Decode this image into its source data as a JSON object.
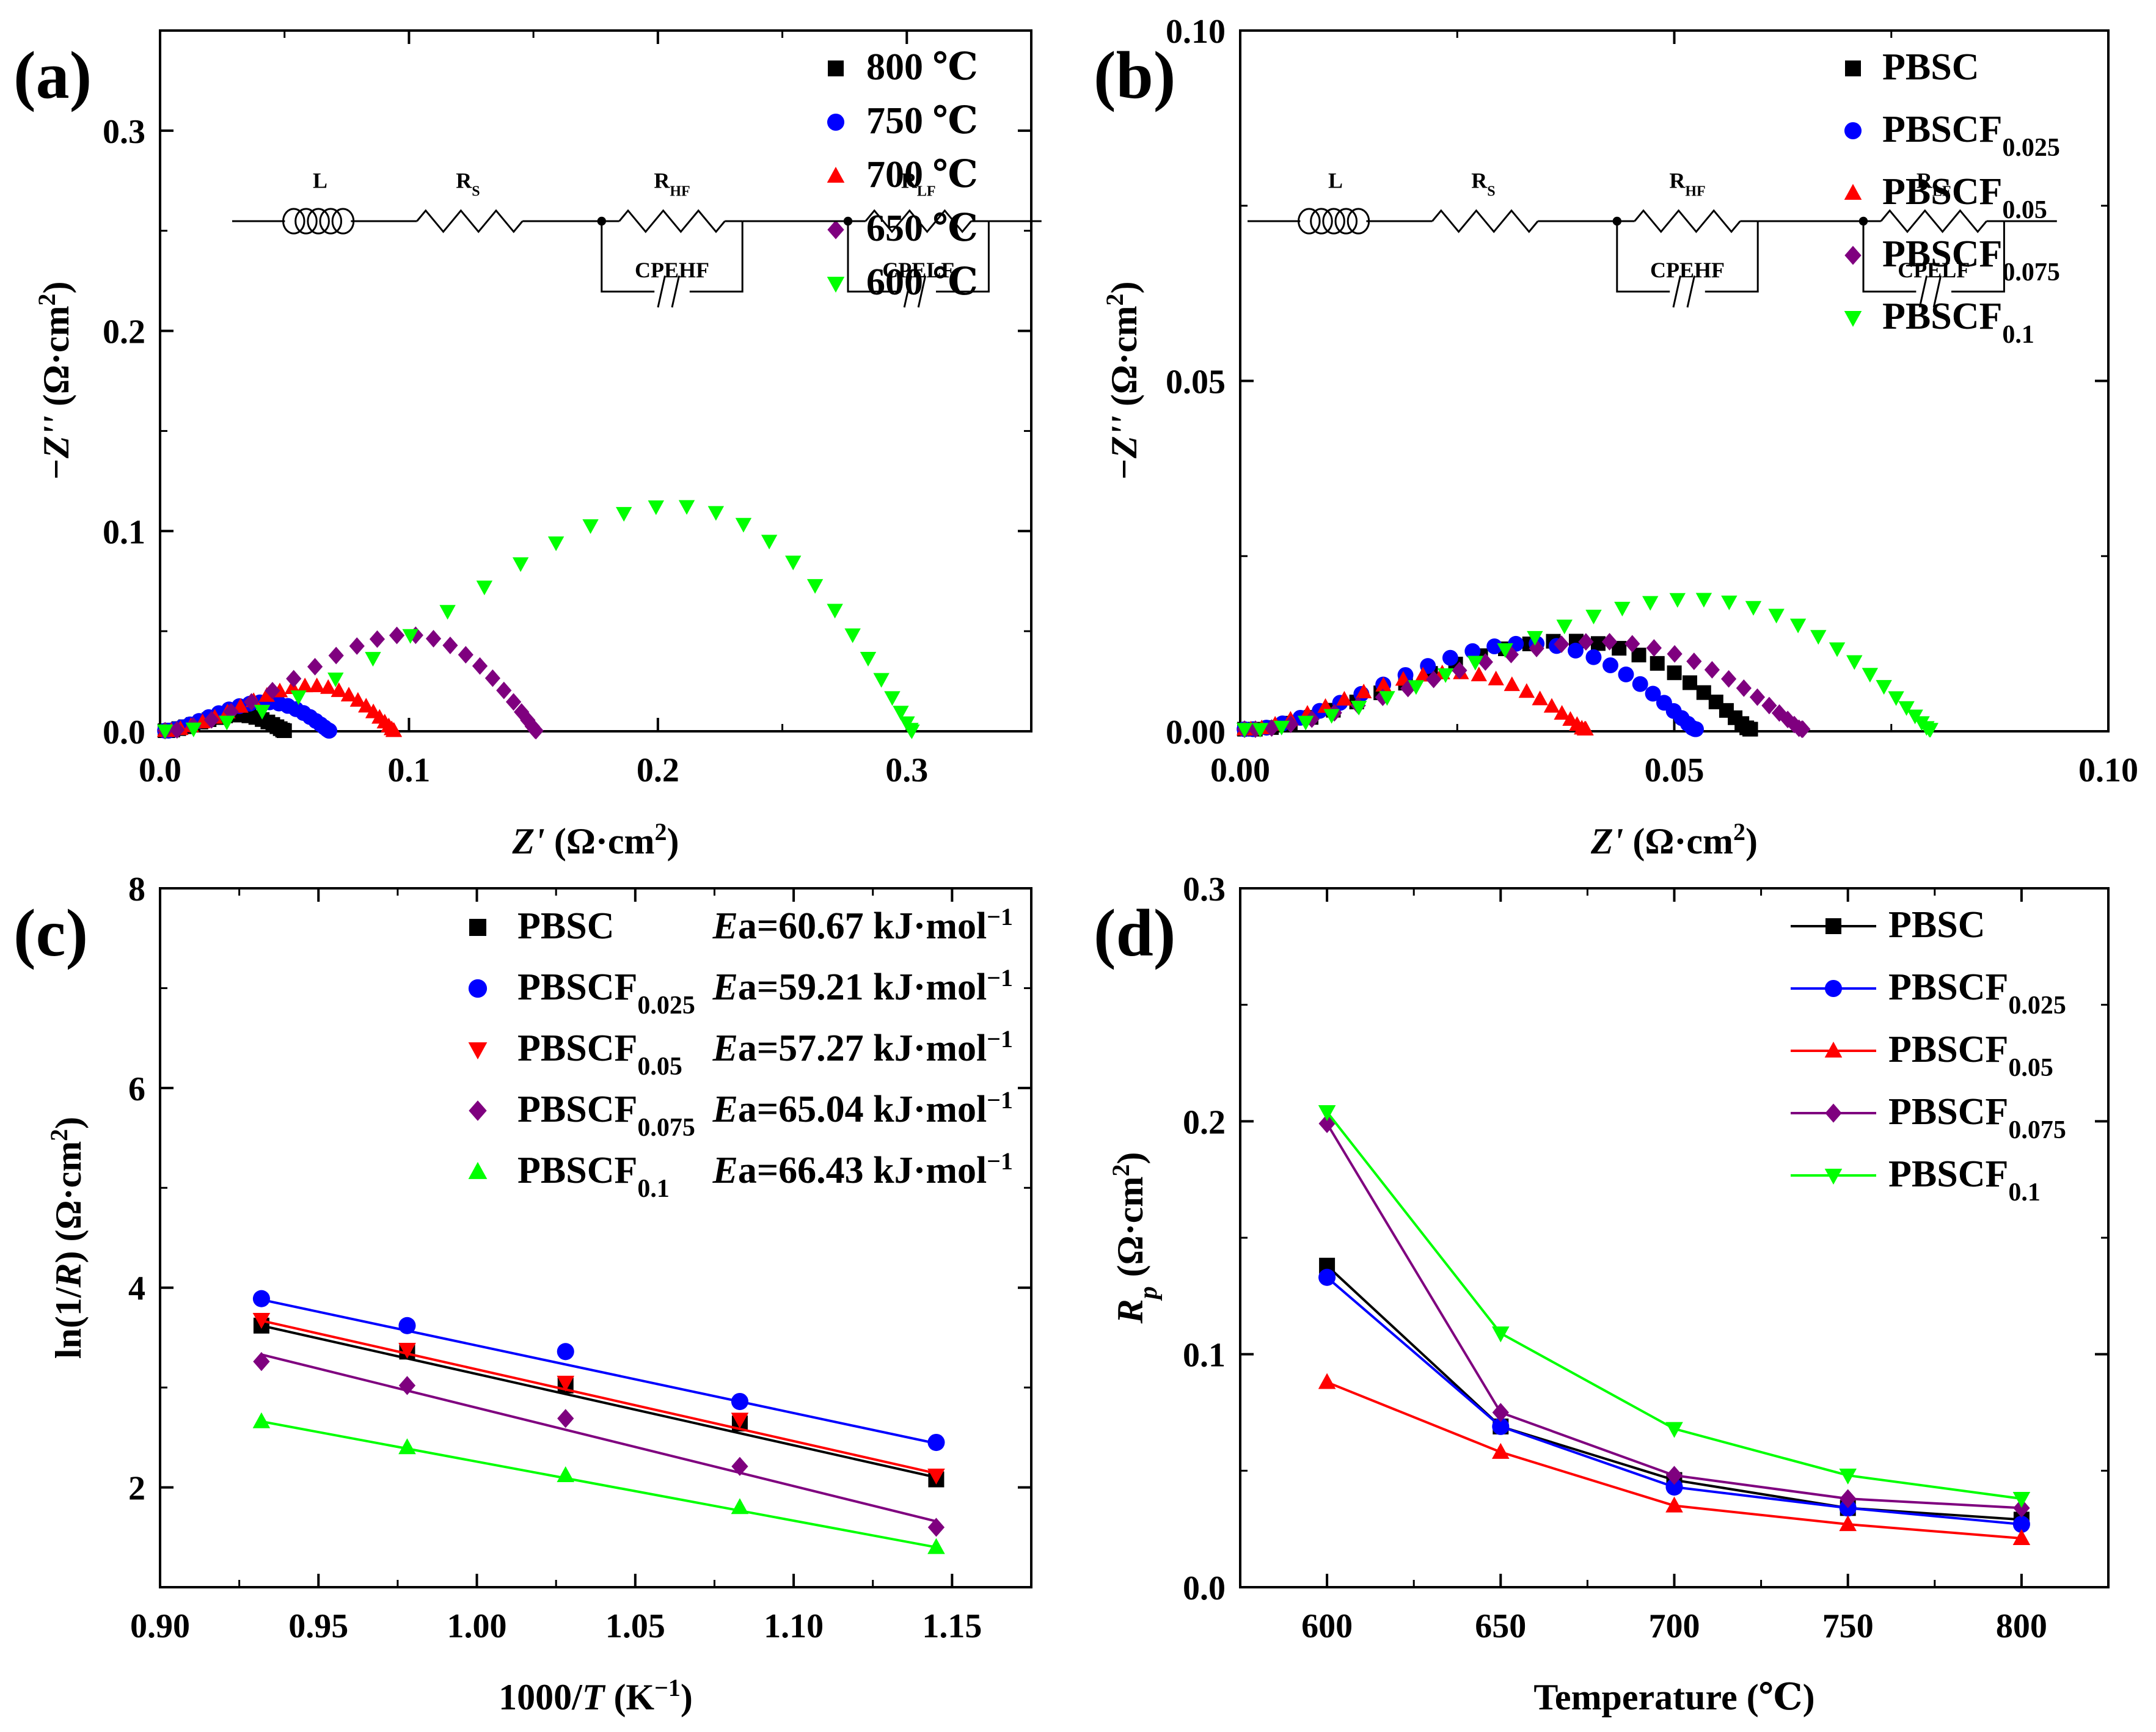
{
  "figure": {
    "colors": {
      "black": "#000000",
      "blue": "#0000ff",
      "red": "#ff0000",
      "purple": "#7f007f",
      "green": "#00ff00"
    },
    "circuit": {
      "L": "L",
      "RS": "R",
      "RS_sub": "S",
      "RHF": "R",
      "RHF_sub": "HF",
      "RLF": "R",
      "RLF_sub": "LF",
      "CPEHF": "CPEHF",
      "CPELF": "CPELF"
    }
  },
  "chart_data": [
    {
      "id": "a",
      "type": "scatter",
      "panel_label": "(a)",
      "xlabel_italic": "Z'",
      "xlabel_rest": " (Ω·cm",
      "xlabel_sup": "2",
      "xlabel_end": ")",
      "ylabel_italic": "−Z''",
      "ylabel_rest": " (Ω·cm",
      "ylabel_sup": "2",
      "ylabel_end": ")",
      "xlim": [
        0,
        0.35
      ],
      "ylim": [
        0,
        0.35
      ],
      "xticks": [
        0,
        0.1,
        0.2,
        0.3
      ],
      "yticks": [
        0,
        0.1,
        0.2,
        0.3
      ],
      "xtick_labels": [
        "0.0",
        "0.1",
        "0.2",
        "0.3"
      ],
      "ytick_labels": [
        "0.0",
        "0.1",
        "0.2",
        "0.3"
      ],
      "legend_position": "top-right",
      "series": [
        {
          "name": "800 ℃",
          "marker": "square",
          "color": "#000000",
          "arc": {
            "r0": 0.002,
            "r1": 0.05,
            "peak": 0.009,
            "n": 22,
            "skew": 0.72
          }
        },
        {
          "name": "750 ℃",
          "marker": "circle",
          "color": "#0000ff",
          "arc": {
            "r0": 0.002,
            "r1": 0.068,
            "peak": 0.016,
            "n": 24,
            "skew": 0.72
          }
        },
        {
          "name": "700 ℃",
          "marker": "triangle-up",
          "color": "#ff0000",
          "arc": {
            "r0": 0.002,
            "r1": 0.094,
            "peak": 0.025,
            "n": 26,
            "skew": 0.65
          }
        },
        {
          "name": "650 ℃",
          "marker": "diamond",
          "color": "#7f007f",
          "arc": {
            "r0": 0.002,
            "r1": 0.151,
            "peak": 0.053,
            "n": 26,
            "skew": 0.62
          }
        },
        {
          "name": "600 ℃",
          "marker": "triangle-down",
          "color": "#00ff00",
          "arc": {
            "r0": 0.002,
            "r1": 0.302,
            "peak": 0.124,
            "n": 30,
            "skew": 0.56
          }
        }
      ]
    },
    {
      "id": "b",
      "type": "scatter",
      "panel_label": "(b)",
      "xlabel_italic": "Z'",
      "xlabel_rest": " (Ω·cm",
      "xlabel_sup": "2",
      "xlabel_end": ")",
      "ylabel_italic": "−Z''",
      "ylabel_rest": " (Ω·cm",
      "ylabel_sup": "2",
      "ylabel_end": ")",
      "xlim": [
        0,
        0.1
      ],
      "ylim": [
        0,
        0.1
      ],
      "xticks": [
        0,
        0.05,
        0.1
      ],
      "yticks": [
        0,
        0.05,
        0.1
      ],
      "xtick_labels": [
        "0.00",
        "0.05",
        "0.10"
      ],
      "ytick_labels": [
        "0.00",
        "0.05",
        "0.10"
      ],
      "legend_position": "top-right",
      "series": [
        {
          "name": "PBSC",
          "sub": "",
          "marker": "square",
          "color": "#000000",
          "arc": {
            "r0": 0.0005,
            "r1": 0.0588,
            "peak": 0.0142,
            "n": 30,
            "skew": 0.66
          }
        },
        {
          "name": "PBSCF",
          "sub": "0.025",
          "marker": "circle",
          "color": "#0000ff",
          "arc": {
            "r0": 0.0005,
            "r1": 0.0525,
            "peak": 0.0138,
            "n": 30,
            "skew": 0.68
          }
        },
        {
          "name": "PBSCF",
          "sub": "0.05",
          "marker": "triangle-up",
          "color": "#ff0000",
          "arc": {
            "r0": 0.0005,
            "r1": 0.0398,
            "peak": 0.0092,
            "n": 26,
            "skew": 0.72
          }
        },
        {
          "name": "PBSCF",
          "sub": "0.075",
          "marker": "diamond",
          "color": "#7f007f",
          "arc": {
            "r0": 0.0005,
            "r1": 0.0648,
            "peak": 0.0141,
            "n": 32,
            "skew": 0.66
          }
        },
        {
          "name": "PBSCF",
          "sub": "0.1",
          "marker": "triangle-down",
          "color": "#00ff00",
          "arc": {
            "r0": 0.0005,
            "r1": 0.0795,
            "peak": 0.0208,
            "n": 34,
            "skew": 0.62
          }
        }
      ]
    },
    {
      "id": "c",
      "type": "scatter",
      "panel_label": "(c)",
      "xlabel_pre": "1000/",
      "xlabel_italic": "T",
      "xlabel_rest": " (K",
      "xlabel_sup": "−1",
      "xlabel_end": ")",
      "ylabel_pre": "ln(1/",
      "ylabel_italic": "R",
      "ylabel_rest": ") (Ω·cm",
      "ylabel_sup": "2",
      "ylabel_end": ")",
      "xlim": [
        0.9,
        1.175
      ],
      "ylim": [
        1.0,
        8.0
      ],
      "xticks": [
        0.9,
        0.95,
        1.0,
        1.05,
        1.1,
        1.15
      ],
      "yticks": [
        2,
        4,
        6,
        8
      ],
      "xtick_labels": [
        "0.90",
        "0.95",
        "1.00",
        "1.05",
        "1.10",
        "1.15"
      ],
      "ytick_labels": [
        "2",
        "4",
        "6",
        "8"
      ],
      "x": [
        0.932,
        0.978,
        1.028,
        1.083,
        1.145
      ],
      "legend_position": "top-right",
      "series": [
        {
          "name": "PBSC",
          "sub": "",
          "ea": "60.67",
          "marker": "square",
          "color": "#000000",
          "values": [
            3.62,
            3.36,
            3.02,
            2.64,
            2.08
          ],
          "fit": [
            3.62,
            2.1
          ]
        },
        {
          "name": "PBSCF",
          "sub": "0.025",
          "ea": "59.21",
          "marker": "circle",
          "color": "#0000ff",
          "values": [
            3.89,
            3.62,
            3.36,
            2.86,
            2.45
          ],
          "fit": [
            3.88,
            2.44
          ]
        },
        {
          "name": "PBSCF",
          "sub": "0.05",
          "ea": "57.27",
          "marker": "triangle-down",
          "color": "#ff0000",
          "values": [
            3.68,
            3.38,
            3.05,
            2.68,
            2.12
          ],
          "fit": [
            3.67,
            2.14
          ]
        },
        {
          "name": "PBSCF",
          "sub": "0.075",
          "ea": "65.04",
          "marker": "diamond",
          "color": "#7f007f",
          "values": [
            3.26,
            3.02,
            2.69,
            2.21,
            1.6
          ],
          "fit": [
            3.33,
            1.66
          ]
        },
        {
          "name": "PBSCF",
          "sub": "0.1",
          "ea": "66.43",
          "marker": "triangle-up",
          "color": "#00ff00",
          "values": [
            2.66,
            2.4,
            2.12,
            1.8,
            1.4
          ],
          "fit": [
            2.66,
            1.4
          ]
        }
      ],
      "ea_prefix_italic": "E",
      "ea_prefix": "a=",
      "ea_unit": " kJ·mol",
      "ea_sup": "−1"
    },
    {
      "id": "d",
      "type": "line",
      "panel_label": "(d)",
      "xlabel": "Temperature (℃)",
      "ylabel_italic": "R",
      "ylabel_sub": "p",
      "ylabel_rest": " (Ω·cm",
      "ylabel_sup": "2",
      "ylabel_end": ")",
      "xlim": [
        575,
        825
      ],
      "ylim": [
        0,
        0.3
      ],
      "xticks": [
        600,
        650,
        700,
        750,
        800
      ],
      "yticks": [
        0,
        0.1,
        0.2,
        0.3
      ],
      "xtick_labels": [
        "600",
        "650",
        "700",
        "750",
        "800"
      ],
      "ytick_labels": [
        "0.0",
        "0.1",
        "0.2",
        "0.3"
      ],
      "x": [
        600,
        650,
        700,
        750,
        800
      ],
      "legend_position": "top-right",
      "series": [
        {
          "name": "PBSC",
          "sub": "",
          "marker": "square",
          "color": "#000000",
          "values": [
            0.138,
            0.069,
            0.046,
            0.034,
            0.029
          ]
        },
        {
          "name": "PBSCF",
          "sub": "0.025",
          "marker": "circle",
          "color": "#0000ff",
          "values": [
            0.133,
            0.069,
            0.043,
            0.034,
            0.027
          ]
        },
        {
          "name": "PBSCF",
          "sub": "0.05",
          "marker": "triangle-up",
          "color": "#ff0000",
          "values": [
            0.088,
            0.058,
            0.035,
            0.027,
            0.021
          ]
        },
        {
          "name": "PBSCF",
          "sub": "0.075",
          "marker": "diamond",
          "color": "#7f007f",
          "values": [
            0.199,
            0.075,
            0.048,
            0.038,
            0.034
          ]
        },
        {
          "name": "PBSCF",
          "sub": "0.1",
          "marker": "triangle-down",
          "color": "#00ff00",
          "values": [
            0.204,
            0.109,
            0.068,
            0.048,
            0.038
          ]
        }
      ]
    }
  ]
}
